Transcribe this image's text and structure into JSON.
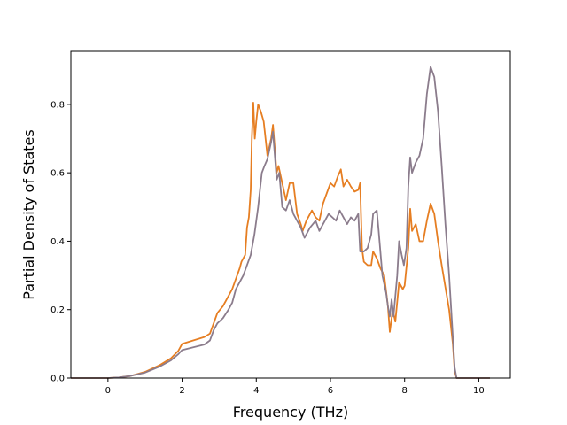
{
  "chart_data": {
    "type": "line",
    "title": "",
    "xlabel": "Frequency (THz)",
    "ylabel": "Partial Density of States",
    "xlim": [
      -1.0,
      10.85
    ],
    "ylim": [
      0.0,
      0.955
    ],
    "xticks": [
      0,
      2,
      4,
      6,
      8,
      10
    ],
    "yticks": [
      0.0,
      0.2,
      0.4,
      0.6,
      0.8
    ],
    "xtick_labels": [
      "0",
      "2",
      "4",
      "6",
      "8",
      "10"
    ],
    "ytick_labels": [
      "0.0",
      "0.2",
      "0.4",
      "0.6",
      "0.8"
    ],
    "grid": false,
    "legend": "none",
    "series": [
      {
        "color": "#e67e22",
        "points": [
          [
            -1.0,
            0.0
          ],
          [
            0.0,
            0.0
          ],
          [
            0.3,
            0.002
          ],
          [
            0.6,
            0.006
          ],
          [
            1.0,
            0.018
          ],
          [
            1.4,
            0.038
          ],
          [
            1.7,
            0.058
          ],
          [
            1.9,
            0.08
          ],
          [
            2.0,
            0.1
          ],
          [
            2.3,
            0.11
          ],
          [
            2.6,
            0.12
          ],
          [
            2.75,
            0.13
          ],
          [
            2.85,
            0.16
          ],
          [
            2.95,
            0.19
          ],
          [
            3.1,
            0.21
          ],
          [
            3.25,
            0.24
          ],
          [
            3.35,
            0.26
          ],
          [
            3.45,
            0.29
          ],
          [
            3.55,
            0.32
          ],
          [
            3.6,
            0.34
          ],
          [
            3.65,
            0.35
          ],
          [
            3.7,
            0.36
          ],
          [
            3.75,
            0.44
          ],
          [
            3.8,
            0.47
          ],
          [
            3.85,
            0.55
          ],
          [
            3.88,
            0.7
          ],
          [
            3.92,
            0.805
          ],
          [
            3.96,
            0.7
          ],
          [
            4.0,
            0.75
          ],
          [
            4.05,
            0.8
          ],
          [
            4.12,
            0.78
          ],
          [
            4.2,
            0.75
          ],
          [
            4.3,
            0.65
          ],
          [
            4.4,
            0.7
          ],
          [
            4.45,
            0.74
          ],
          [
            4.5,
            0.67
          ],
          [
            4.55,
            0.6
          ],
          [
            4.6,
            0.62
          ],
          [
            4.7,
            0.57
          ],
          [
            4.8,
            0.52
          ],
          [
            4.9,
            0.57
          ],
          [
            5.0,
            0.57
          ],
          [
            5.1,
            0.48
          ],
          [
            5.2,
            0.45
          ],
          [
            5.25,
            0.43
          ],
          [
            5.35,
            0.46
          ],
          [
            5.5,
            0.49
          ],
          [
            5.6,
            0.47
          ],
          [
            5.7,
            0.46
          ],
          [
            5.8,
            0.51
          ],
          [
            5.9,
            0.54
          ],
          [
            6.0,
            0.57
          ],
          [
            6.1,
            0.56
          ],
          [
            6.2,
            0.59
          ],
          [
            6.28,
            0.61
          ],
          [
            6.35,
            0.56
          ],
          [
            6.45,
            0.58
          ],
          [
            6.55,
            0.56
          ],
          [
            6.65,
            0.545
          ],
          [
            6.75,
            0.55
          ],
          [
            6.8,
            0.57
          ],
          [
            6.85,
            0.38
          ],
          [
            6.9,
            0.34
          ],
          [
            7.0,
            0.33
          ],
          [
            7.1,
            0.33
          ],
          [
            7.15,
            0.37
          ],
          [
            7.25,
            0.35
          ],
          [
            7.35,
            0.32
          ],
          [
            7.45,
            0.3
          ],
          [
            7.55,
            0.21
          ],
          [
            7.6,
            0.135
          ],
          [
            7.68,
            0.2
          ],
          [
            7.75,
            0.165
          ],
          [
            7.85,
            0.28
          ],
          [
            7.95,
            0.26
          ],
          [
            8.0,
            0.27
          ],
          [
            8.1,
            0.38
          ],
          [
            8.15,
            0.495
          ],
          [
            8.2,
            0.43
          ],
          [
            8.3,
            0.45
          ],
          [
            8.4,
            0.4
          ],
          [
            8.5,
            0.4
          ],
          [
            8.6,
            0.46
          ],
          [
            8.7,
            0.51
          ],
          [
            8.8,
            0.48
          ],
          [
            8.9,
            0.4
          ],
          [
            9.0,
            0.33
          ],
          [
            9.2,
            0.2
          ],
          [
            9.3,
            0.1
          ],
          [
            9.35,
            0.02
          ],
          [
            9.4,
            0.0
          ],
          [
            10.3,
            0.0
          ]
        ]
      },
      {
        "color": "#8b7c8c",
        "points": [
          [
            -1.0,
            0.0
          ],
          [
            0.0,
            0.0
          ],
          [
            0.3,
            0.002
          ],
          [
            0.6,
            0.006
          ],
          [
            1.0,
            0.016
          ],
          [
            1.4,
            0.034
          ],
          [
            1.7,
            0.052
          ],
          [
            1.9,
            0.07
          ],
          [
            2.0,
            0.082
          ],
          [
            2.3,
            0.09
          ],
          [
            2.6,
            0.098
          ],
          [
            2.75,
            0.11
          ],
          [
            2.85,
            0.14
          ],
          [
            2.95,
            0.16
          ],
          [
            3.1,
            0.175
          ],
          [
            3.25,
            0.2
          ],
          [
            3.35,
            0.22
          ],
          [
            3.45,
            0.26
          ],
          [
            3.55,
            0.28
          ],
          [
            3.65,
            0.3
          ],
          [
            3.75,
            0.33
          ],
          [
            3.85,
            0.36
          ],
          [
            3.95,
            0.42
          ],
          [
            4.05,
            0.5
          ],
          [
            4.1,
            0.55
          ],
          [
            4.15,
            0.6
          ],
          [
            4.22,
            0.62
          ],
          [
            4.3,
            0.64
          ],
          [
            4.4,
            0.69
          ],
          [
            4.45,
            0.72
          ],
          [
            4.5,
            0.65
          ],
          [
            4.55,
            0.58
          ],
          [
            4.62,
            0.6
          ],
          [
            4.7,
            0.5
          ],
          [
            4.8,
            0.49
          ],
          [
            4.9,
            0.52
          ],
          [
            5.0,
            0.48
          ],
          [
            5.1,
            0.46
          ],
          [
            5.2,
            0.44
          ],
          [
            5.3,
            0.41
          ],
          [
            5.45,
            0.44
          ],
          [
            5.6,
            0.46
          ],
          [
            5.7,
            0.43
          ],
          [
            5.85,
            0.46
          ],
          [
            5.95,
            0.48
          ],
          [
            6.05,
            0.47
          ],
          [
            6.15,
            0.46
          ],
          [
            6.25,
            0.49
          ],
          [
            6.35,
            0.47
          ],
          [
            6.45,
            0.45
          ],
          [
            6.55,
            0.47
          ],
          [
            6.65,
            0.46
          ],
          [
            6.75,
            0.48
          ],
          [
            6.8,
            0.37
          ],
          [
            6.9,
            0.37
          ],
          [
            7.0,
            0.38
          ],
          [
            7.1,
            0.42
          ],
          [
            7.15,
            0.48
          ],
          [
            7.25,
            0.49
          ],
          [
            7.3,
            0.43
          ],
          [
            7.4,
            0.3
          ],
          [
            7.5,
            0.25
          ],
          [
            7.55,
            0.21
          ],
          [
            7.6,
            0.18
          ],
          [
            7.65,
            0.23
          ],
          [
            7.7,
            0.18
          ],
          [
            7.8,
            0.3
          ],
          [
            7.85,
            0.4
          ],
          [
            7.92,
            0.36
          ],
          [
            7.98,
            0.33
          ],
          [
            8.05,
            0.38
          ],
          [
            8.1,
            0.56
          ],
          [
            8.15,
            0.645
          ],
          [
            8.2,
            0.6
          ],
          [
            8.3,
            0.63
          ],
          [
            8.4,
            0.65
          ],
          [
            8.5,
            0.7
          ],
          [
            8.6,
            0.83
          ],
          [
            8.7,
            0.91
          ],
          [
            8.8,
            0.88
          ],
          [
            8.9,
            0.78
          ],
          [
            9.0,
            0.62
          ],
          [
            9.1,
            0.45
          ],
          [
            9.2,
            0.3
          ],
          [
            9.3,
            0.12
          ],
          [
            9.35,
            0.03
          ],
          [
            9.4,
            0.0
          ],
          [
            10.3,
            0.0
          ]
        ]
      }
    ]
  }
}
